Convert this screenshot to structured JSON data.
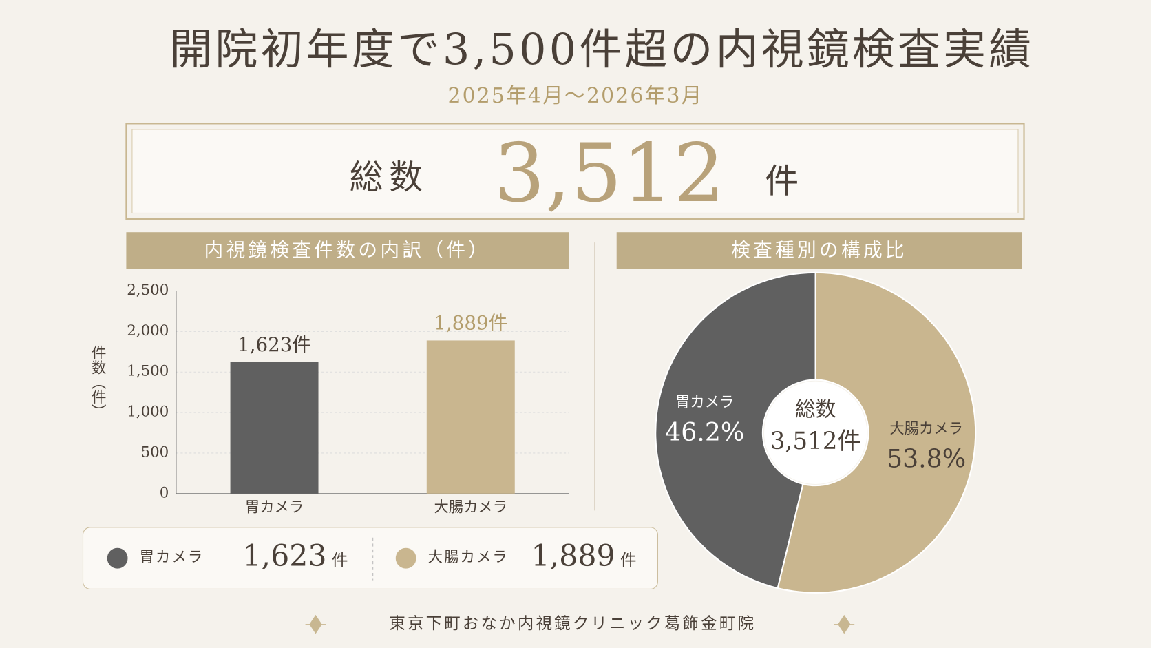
{
  "header": {
    "title": "開院初年度で3,500件超の内視鏡検査実績",
    "period": "2025年4月〜2026年3月"
  },
  "total": {
    "label": "総数",
    "value": "3,512",
    "unit": "件"
  },
  "chart_data": [
    {
      "type": "bar",
      "title": "内視鏡検査件数の内訳（件）",
      "y_label": "件数（件）",
      "categories": [
        "胃カメラ",
        "大腸カメラ"
      ],
      "values": [
        1623,
        1889
      ],
      "value_labels": [
        "1,623件",
        "1,889件"
      ],
      "colors": [
        "#606060",
        "#c9b68f"
      ],
      "ylim": [
        0,
        2500
      ],
      "yticks": [
        0,
        500,
        {
          "value": 1000,
          "label": "1,000"
        },
        {
          "value": 1500,
          "label": "1,500"
        },
        {
          "value": 2000,
          "label": "2,000"
        },
        {
          "value": 2500,
          "label": "2,500"
        }
      ],
      "grid": true
    },
    {
      "type": "pie",
      "title": "検査種別の構成比",
      "categories": [
        "胃カメラ",
        "大腸カメラ"
      ],
      "values": [
        46.2,
        53.8
      ],
      "value_labels": [
        "46.2%",
        "53.8%"
      ],
      "colors": [
        "#606060",
        "#c9b68f"
      ],
      "center_label": "総数",
      "center_value": "3,512件"
    }
  ],
  "summary": {
    "items": [
      {
        "name": "胃カメラ",
        "count": "1,623",
        "unit": "件"
      },
      {
        "name": "大腸カメラ",
        "count": "1,889",
        "unit": "件"
      }
    ]
  },
  "footer": "東京下町おなか内視鏡クリニック葛飾金町院"
}
